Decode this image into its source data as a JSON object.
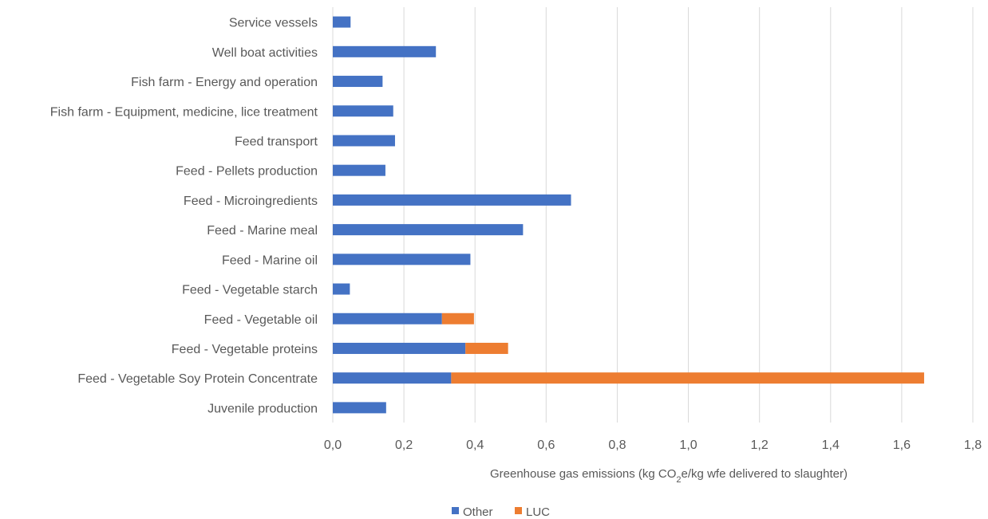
{
  "chart_data": {
    "type": "bar",
    "orientation": "horizontal",
    "stacked": true,
    "categories": [
      "Service vessels",
      "Well boat activities",
      "Fish farm - Energy and operation",
      "Fish farm - Equipment, medicine, lice treatment",
      "Feed transport",
      "Feed - Pellets production",
      "Feed - Microingredients",
      "Feed - Marine meal",
      "Feed - Marine oil",
      "Feed - Vegetable starch",
      "Feed - Vegetable oil",
      "Feed - Vegetable proteins",
      "Feed - Vegetable Soy Protein Concentrate",
      "Juvenile production"
    ],
    "series": [
      {
        "name": "Other",
        "color": "#4472c4",
        "values": [
          0.05,
          0.29,
          0.14,
          0.17,
          0.175,
          0.148,
          0.67,
          0.535,
          0.387,
          0.048,
          0.307,
          0.373,
          0.333,
          0.15
        ]
      },
      {
        "name": "LUC",
        "color": "#ed7d31",
        "values": [
          0,
          0,
          0,
          0,
          0,
          0,
          0,
          0,
          0,
          0,
          0.09,
          0.12,
          1.33,
          0
        ]
      }
    ],
    "xlabel": {
      "prefix": "Greenhouse gas emissions (kg CO",
      "subscript": "2",
      "suffix": "e/kg wfe delivered to slaughter)"
    },
    "ylabel": "",
    "xlim": [
      0,
      1.8
    ],
    "xticks": [
      "0,0",
      "0,2",
      "0,4",
      "0,6",
      "0,8",
      "1,0",
      "1,2",
      "1,4",
      "1,6",
      "1,8"
    ],
    "grid": "vertical",
    "legend": "bottom-center"
  }
}
